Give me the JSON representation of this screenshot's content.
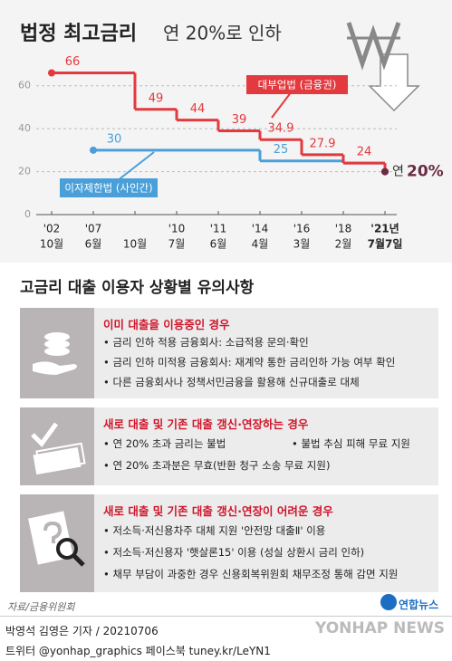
{
  "chart_data": {
    "type": "step",
    "title": "법정 최고금리",
    "subtitle": "연 20%로 인하",
    "categories": [
      "'02",
      "'07",
      null,
      "'10",
      "'11",
      "'14",
      "'16",
      "'18",
      "'21년"
    ],
    "category_months": [
      "10월",
      "6월",
      "10월",
      "7월",
      "6월",
      "4월",
      "3월",
      "2월",
      "7월7일"
    ],
    "ylim": [
      0,
      70
    ],
    "yticks": [
      0,
      20,
      40,
      60
    ],
    "grid": true,
    "series": [
      {
        "name": "대부업법 (금융권)",
        "color": "#e23a3f",
        "values": [
          66,
          66,
          49,
          44,
          39,
          34.9,
          27.9,
          24,
          20
        ],
        "value_labels": [
          "66",
          null,
          "49",
          "44",
          "39",
          "34.9",
          "27.9",
          "24",
          "20%"
        ]
      },
      {
        "name": "이자제한법 (사인간)",
        "color": "#4a9fd9",
        "values": [
          null,
          30,
          30,
          30,
          30,
          25,
          25,
          24,
          20
        ],
        "value_labels": [
          null,
          "30",
          null,
          null,
          null,
          "25",
          null,
          null,
          null
        ]
      }
    ],
    "end_annotation": "연"
  },
  "notice": {
    "title": "고금리 대출 이용자 상황별 유의사항",
    "cards": [
      {
        "heading": "이미 대출을 이용중인 경우",
        "bullets": [
          "금리 인하 적용 금융회사: 소급적용 문의·확인",
          "금리 인하 미적용 금융회사: 재계약 통한 금리인하 가능 여부 확인",
          "다른 금융회사나 정책서민금융을 활용해 신규대출로 대체"
        ]
      },
      {
        "heading": "새로 대출 및 기존 대출 갱신·연장하는 경우",
        "bullets": [
          "연 20% 초과 금리는 불법",
          "불법 추심 피해 무료 지원",
          "연 20% 초과분은 무효(반환 청구 소송 무료 지원)"
        ]
      },
      {
        "heading": "새로 대출 및 기존 대출 갱신·연장이 어려운 경우",
        "bullets": [
          "저소득·저신용차주 대체 지원 '안전망 대출Ⅱ' 이용",
          "저소득·저신용자 '햇살론15' 이용 (성실 상환시 금리 인하)",
          "채무 부담이 과중한 경우 신용회복위원회 채무조정 통해 감면 지원"
        ]
      }
    ]
  },
  "source": "자료/금융위원회",
  "logo": "연합뉴스",
  "credits": [
    "박영석 김영은 기자 / 20210706",
    "트위터 @yonhap_graphics  페이스북 tuney.kr/LeYN1"
  ],
  "watermark": "YONHAP NEWS"
}
